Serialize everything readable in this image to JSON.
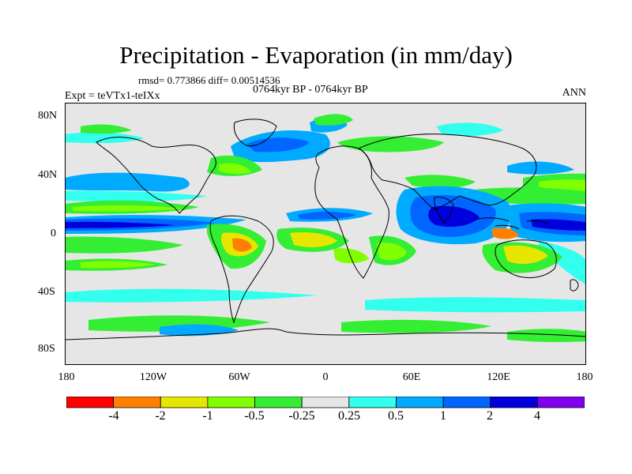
{
  "title": "Precipitation - Evaporation (in mm/day)",
  "stats": "rmsd= 0.773866 diff= 0.00514536",
  "period": "0764kyr BP - 0764kyr BP",
  "experiment": "Expt = teVTx1-teIXx",
  "season": "ANN",
  "y_ticks": [
    "80N",
    "40N",
    "0",
    "40S",
    "80S"
  ],
  "x_ticks": [
    "180",
    "120W",
    "60W",
    "0",
    "60E",
    "120E",
    "180"
  ],
  "colorbar": {
    "labels": [
      "-4",
      "-2",
      "-1",
      "-0.5",
      "-0.25",
      "0.25",
      "0.5",
      "1",
      "2",
      "4"
    ],
    "colors": [
      "#ff0000",
      "#ff8000",
      "#e6e600",
      "#80ff00",
      "#33ee33",
      "#e6e6e6",
      "#33ffee",
      "#00aaff",
      "#0066ff",
      "#0000dd",
      "#8000ee"
    ]
  },
  "field_colors": {
    "background": "#e6e6e6",
    "dry_strong": "#ff0000",
    "dry_orange": "#ff8000",
    "dry_yellow": "#e6e600",
    "dry_lime": "#80ff00",
    "dry_green": "#33ee33",
    "wet_cyan": "#33ffee",
    "wet_sky": "#00aaff",
    "wet_blue": "#0066ff",
    "wet_navy": "#0000dd",
    "coast": "#000000"
  }
}
